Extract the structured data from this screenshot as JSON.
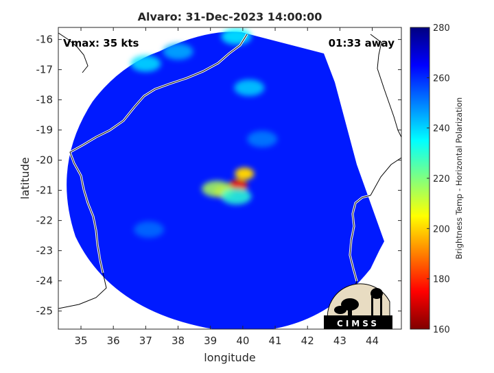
{
  "chart_data": {
    "type": "heatmap",
    "title": "Alvaro: 31-Dec-2023 14:00:00",
    "xlabel": "longitude",
    "ylabel": "latitude",
    "xlim": [
      34.3,
      44.9
    ],
    "ylim": [
      -25.6,
      -15.6
    ],
    "xticks": [
      "35",
      "36",
      "37",
      "38",
      "39",
      "40",
      "41",
      "42",
      "43",
      "44"
    ],
    "yticks": [
      "-16",
      "-17",
      "-18",
      "-19",
      "-20",
      "-21",
      "-22",
      "-23",
      "-24",
      "-25"
    ],
    "annotations": {
      "vmax": "Vmax: 35 kts",
      "time_away": "01:33 away"
    },
    "colorbar": {
      "label": "Brightness Temp - Horizontal Polarization",
      "min": 160,
      "max": 280,
      "ticks": [
        "160",
        "180",
        "200",
        "220",
        "240",
        "260",
        "280"
      ],
      "colormap": "jet"
    },
    "swath": {
      "center_lon": 39.5,
      "center_lat": -20.6,
      "background_value": 262
    },
    "features": [
      {
        "lon": 39.85,
        "lat": -20.85,
        "value": 172
      },
      {
        "lon": 39.4,
        "lat": -21.05,
        "value": 190
      },
      {
        "lon": 40.05,
        "lat": -20.45,
        "value": 200
      },
      {
        "lon": 39.2,
        "lat": -20.95,
        "value": 215
      },
      {
        "lon": 39.8,
        "lat": -21.2,
        "value": 230
      },
      {
        "lon": 37.0,
        "lat": -16.8,
        "value": 238
      },
      {
        "lon": 38.0,
        "lat": -16.4,
        "value": 244
      },
      {
        "lon": 39.8,
        "lat": -15.9,
        "value": 236
      },
      {
        "lon": 40.2,
        "lat": -17.6,
        "value": 240
      },
      {
        "lon": 40.6,
        "lat": -19.3,
        "value": 250
      },
      {
        "lon": 37.1,
        "lat": -22.3,
        "value": 252
      }
    ],
    "grid": false,
    "logo": "CIMSS"
  }
}
